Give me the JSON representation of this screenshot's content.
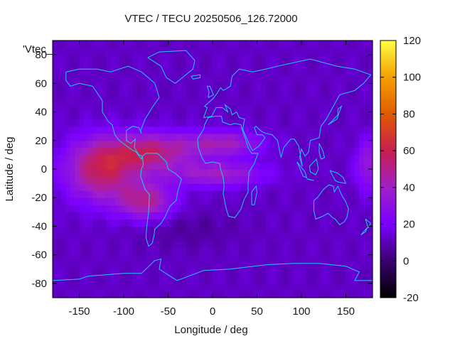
{
  "chart_data": {
    "type": "heatmap",
    "title": "VTEC / TECU 20250506_126.72000",
    "xlabel": "Longitude / deg",
    "ylabel": "Latitude / deg",
    "legend_label": "'Vtec_",
    "xlim": [
      -180,
      180
    ],
    "ylim": [
      -90,
      90
    ],
    "xticks": [
      -150,
      -100,
      -50,
      0,
      50,
      100,
      150
    ],
    "yticks": [
      -80,
      -60,
      -40,
      -20,
      0,
      20,
      40,
      60,
      80
    ],
    "colorbar": {
      "range": [
        -20,
        120
      ],
      "ticks": [
        -20,
        0,
        20,
        40,
        60,
        80,
        100,
        120
      ],
      "palette": [
        "#000000",
        "#3a0070",
        "#7a00ff",
        "#a020c8",
        "#c81e50",
        "#e05a00",
        "#f5a000",
        "#ffff40"
      ]
    },
    "field_model": {
      "background_tecu": 12,
      "features": [
        {
          "lon": -125,
          "lat": 0,
          "sigma_lon": 28,
          "sigma_lat": 15,
          "peak_tecu": 46
        },
        {
          "lon": -70,
          "lat": 12,
          "sigma_lon": 32,
          "sigma_lat": 9,
          "peak_tecu": 40
        },
        {
          "lon": -75,
          "lat": -22,
          "sigma_lon": 22,
          "sigma_lat": 9,
          "peak_tecu": 36
        },
        {
          "lon": 10,
          "lat": 18,
          "sigma_lon": 32,
          "sigma_lat": 6,
          "peak_tecu": 30
        },
        {
          "lon": 5,
          "lat": -3,
          "sigma_lon": 38,
          "sigma_lat": 6,
          "peak_tecu": 28
        },
        {
          "lon": 175,
          "lat": 3,
          "sigma_lon": 10,
          "sigma_lat": 12,
          "peak_tecu": 24
        },
        {
          "lon": -30,
          "lat": -42,
          "sigma_lon": 40,
          "sigma_lat": 9,
          "peak_tecu": -6
        }
      ]
    }
  }
}
